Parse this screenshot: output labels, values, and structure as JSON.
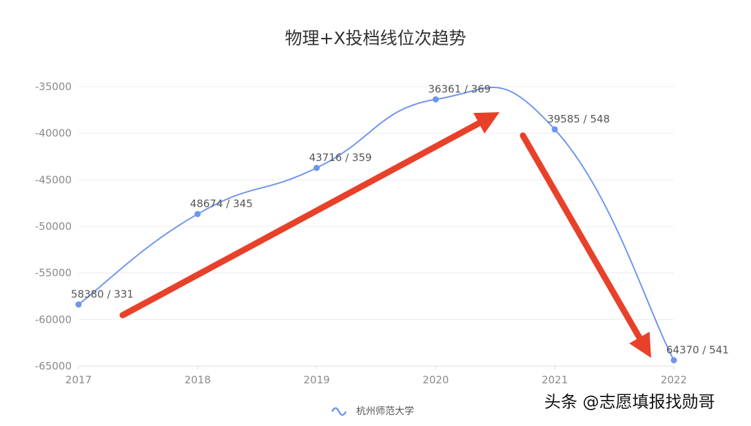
{
  "chart_data": {
    "type": "line",
    "title": "物理+X投档线位次趋势",
    "categories": [
      "2017",
      "2018",
      "2019",
      "2020",
      "2021",
      "2022"
    ],
    "series": [
      {
        "name": "杭州师范大学",
        "values": [
          -58380,
          -48674,
          -43716,
          -36361,
          -39585,
          -64370
        ],
        "labels": [
          "58380 / 331",
          "48674 / 345",
          "43716 / 359",
          "36361 / 369",
          "39585 / 548",
          "64370 / 541"
        ],
        "color": "#6e95ec"
      }
    ],
    "yticks": [
      "-35000",
      "-40000",
      "-45000",
      "-50000",
      "-55000",
      "-60000",
      "-65000"
    ],
    "ylim": [
      -65000,
      -35000
    ],
    "grid": true,
    "smooth": true,
    "legend_position": "bottom",
    "annotations": [
      {
        "type": "arrow",
        "color": "#e8412a",
        "meaning": "rising trend 2017-2020"
      },
      {
        "type": "arrow",
        "color": "#e8412a",
        "meaning": "falling trend 2021-2022"
      }
    ]
  },
  "watermark": "头条 @志愿填报找勋哥"
}
